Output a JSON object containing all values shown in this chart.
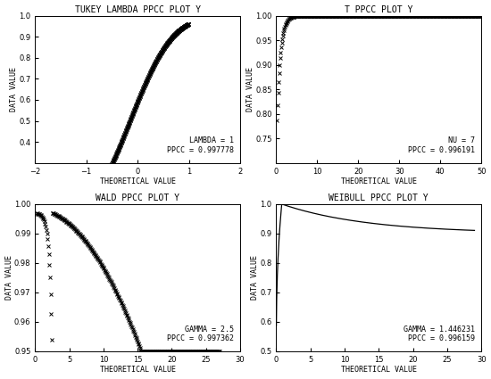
{
  "plots": [
    {
      "title": "TUKEY LAMBDA PPCC PLOT Y",
      "xlabel": "THEORETICAL VALUE",
      "ylabel": "DATA VALUE",
      "annotation": "LAMBDA = 1\nPPCC = 0.997778",
      "xlim": [
        -2,
        2
      ],
      "ylim": [
        0.3,
        1.0
      ],
      "yticks": [
        0.4,
        0.5,
        0.6,
        0.7,
        0.8,
        0.9,
        1.0
      ],
      "xticks": [
        -2,
        -1,
        0,
        1,
        2
      ],
      "curve_type": "tukey_lambda",
      "lambda_val": 1
    },
    {
      "title": "T PPCC PLOT Y",
      "xlabel": "THEORETICAL VALUE",
      "ylabel": "DATA VALUE",
      "annotation": "NU = 7\nPPCC = 0.996191",
      "xlim": [
        0,
        50
      ],
      "ylim": [
        0.7,
        1.0
      ],
      "yticks": [
        0.75,
        0.8,
        0.85,
        0.9,
        0.95,
        1.0
      ],
      "xticks": [
        0,
        10,
        20,
        30,
        40,
        50
      ],
      "curve_type": "t_dist",
      "nu": 7
    },
    {
      "title": "WALD PPCC PLOT Y",
      "xlabel": "THEORETICAL VALUE",
      "ylabel": "DATA VALUE",
      "annotation": "GAMMA = 2.5\nPPCC = 0.997362",
      "xlim": [
        0,
        30
      ],
      "ylim": [
        0.95,
        1.0
      ],
      "yticks": [
        0.95,
        0.96,
        0.97,
        0.98,
        0.99,
        1.0
      ],
      "xticks": [
        0,
        5,
        10,
        15,
        20,
        25,
        30
      ],
      "curve_type": "wald",
      "gamma": 2.5
    },
    {
      "title": "WEIBULL PPCC PLOT Y",
      "xlabel": "THEORETICAL VALUE",
      "ylabel": "DATA VALUE",
      "annotation": "GAMMA = 1.446231\nPPCC = 0.996159",
      "xlim": [
        0,
        30
      ],
      "ylim": [
        0.5,
        1.0
      ],
      "yticks": [
        0.5,
        0.6,
        0.7,
        0.8,
        0.9,
        1.0
      ],
      "xticks": [
        0,
        5,
        10,
        15,
        20,
        25,
        30
      ],
      "curve_type": "weibull",
      "gamma": 1.446231
    }
  ],
  "marker": "x",
  "markersize": 3,
  "color": "black",
  "bg_color": "white",
  "title_fontsize": 7,
  "label_fontsize": 6,
  "tick_fontsize": 6,
  "annot_fontsize": 6
}
